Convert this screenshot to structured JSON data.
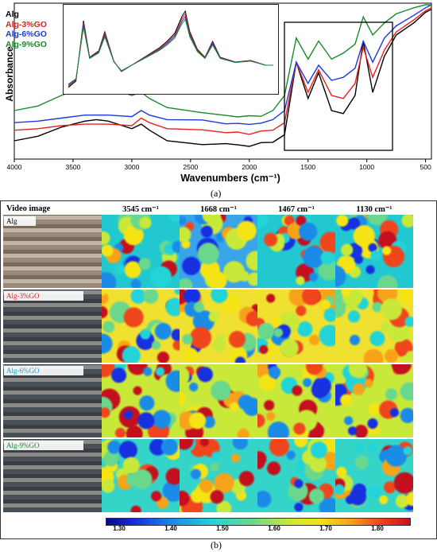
{
  "figure_a": {
    "label": "(a)",
    "y_axis_label": "Absorbance",
    "x_axis_label": "Wavenumbers (cm⁻¹)",
    "x_ticks": [
      "4000",
      "3500",
      "3000",
      "2500",
      "2000",
      "1500",
      "1000",
      "500"
    ],
    "legend": [
      {
        "name": "Alg",
        "color": "#000000"
      },
      {
        "name": "Alg-3%GO",
        "color": "#e8201e"
      },
      {
        "name": "Alg-6%GO",
        "color": "#1a39e0"
      },
      {
        "name": "Alg-9%GO",
        "color": "#1a8a2a"
      }
    ]
  },
  "figure_b": {
    "label": "(b)",
    "column_headers": [
      "Video image",
      "3545 cm⁻¹",
      "1668 cm⁻¹",
      "1467 cm⁻¹",
      "1130 cm⁻¹"
    ],
    "rows": [
      {
        "label": "Alg",
        "color": "#000000"
      },
      {
        "label": "Alg-3%GO",
        "color": "#e8201e"
      },
      {
        "label": "Alg-6%GO",
        "color": "#1aa0d8"
      },
      {
        "label": "Alg-9%GO",
        "color": "#1a8a2a"
      }
    ],
    "colorbar_ticks": [
      "1.30",
      "1.40",
      "1.50",
      "1.60",
      "1.70",
      "1.80"
    ]
  },
  "chart_data": {
    "type": "line",
    "xlabel": "Wavenumbers (cm⁻¹)",
    "ylabel": "Absorbance",
    "xlim": [
      4000,
      450
    ],
    "x_reversed": true,
    "x": [
      4000,
      3800,
      3600,
      3400,
      3300,
      3200,
      3000,
      2920,
      2850,
      2700,
      2400,
      2200,
      2100,
      2000,
      1900,
      1800,
      1700,
      1600,
      1500,
      1410,
      1300,
      1200,
      1100,
      1030,
      950,
      850,
      750,
      600,
      500,
      450
    ],
    "series": [
      {
        "name": "Alg",
        "color": "#000000",
        "values": [
          0.1,
          0.13,
          0.19,
          0.23,
          0.24,
          0.23,
          0.18,
          0.21,
          0.17,
          0.1,
          0.08,
          0.08,
          0.07,
          0.07,
          0.08,
          0.09,
          0.14,
          0.62,
          0.38,
          0.55,
          0.3,
          0.28,
          0.4,
          0.76,
          0.42,
          0.66,
          0.8,
          0.88,
          0.95,
          0.97
        ]
      },
      {
        "name": "Alg-3%GO",
        "color": "#e8201e",
        "values": [
          0.17,
          0.18,
          0.2,
          0.21,
          0.21,
          0.21,
          0.2,
          0.25,
          0.22,
          0.18,
          0.17,
          0.16,
          0.15,
          0.15,
          0.16,
          0.17,
          0.22,
          0.62,
          0.42,
          0.57,
          0.4,
          0.38,
          0.48,
          0.72,
          0.52,
          0.7,
          0.82,
          0.9,
          0.96,
          0.98
        ]
      },
      {
        "name": "Alg-6%GO",
        "color": "#1a39e0",
        "values": [
          0.22,
          0.23,
          0.25,
          0.27,
          0.27,
          0.27,
          0.26,
          0.3,
          0.27,
          0.24,
          0.23,
          0.22,
          0.21,
          0.21,
          0.22,
          0.24,
          0.3,
          0.62,
          0.48,
          0.6,
          0.5,
          0.52,
          0.58,
          0.76,
          0.62,
          0.78,
          0.86,
          0.93,
          0.98,
          1.0
        ]
      },
      {
        "name": "Alg-9%GO",
        "color": "#1a8a2a",
        "values": [
          0.3,
          0.33,
          0.4,
          0.45,
          0.46,
          0.45,
          0.4,
          0.42,
          0.38,
          0.32,
          0.28,
          0.27,
          0.26,
          0.26,
          0.27,
          0.3,
          0.4,
          0.78,
          0.64,
          0.76,
          0.64,
          0.68,
          0.74,
          0.92,
          0.8,
          0.88,
          0.94,
          0.98,
          1.0,
          1.0
        ]
      }
    ]
  }
}
